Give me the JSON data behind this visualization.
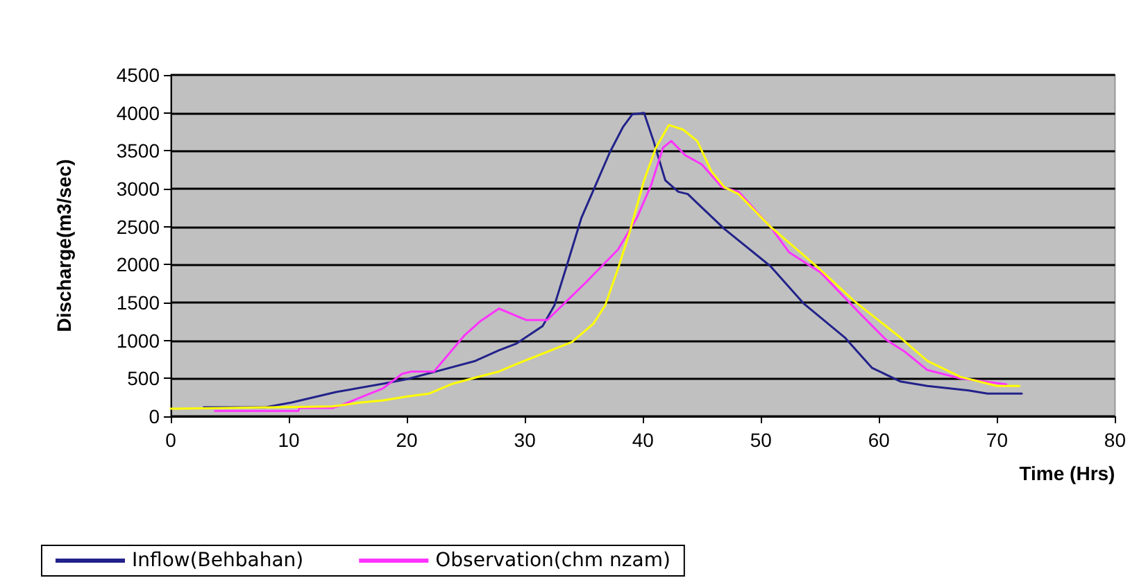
{
  "chart_data": {
    "type": "line",
    "xlabel": "Time (Hrs)",
    "ylabel": "Discharge(m3/sec)",
    "xlim": [
      0,
      80
    ],
    "xticks": [
      0,
      10,
      20,
      30,
      40,
      50,
      60,
      70,
      80
    ],
    "ylim": [
      0,
      4500
    ],
    "yticks": [
      0,
      500,
      1000,
      1500,
      2000,
      2500,
      3000,
      3500,
      4000,
      4500
    ],
    "grid": "y",
    "legend": "bottom",
    "marker": "none",
    "line_style": "solid",
    "series": [
      {
        "name": "Inflow(Behbahan)",
        "color": "#22228a",
        "x": [
          2.8,
          8,
          10.2,
          14,
          18,
          20,
          22.7,
          25.8,
          27.8,
          29.3,
          31.5,
          32.5,
          33.6,
          34.8,
          36,
          37.2,
          38.3,
          39.1,
          40.1,
          40.9,
          41.9,
          43,
          43.8,
          46.9,
          50.8,
          53.6,
          57.1,
          59.4,
          61.8,
          64.1,
          67.6,
          69.2,
          72.1
        ],
        "values": [
          120,
          120,
          180,
          320,
          430,
          490,
          600,
          730,
          870,
          960,
          1190,
          1460,
          2010,
          2620,
          3050,
          3480,
          3810,
          3980,
          4000,
          3630,
          3110,
          2960,
          2930,
          2470,
          1980,
          1490,
          1040,
          640,
          460,
          400,
          340,
          300,
          300
        ]
      },
      {
        "name": "Observation(chm nzam)",
        "color": "#ff33ff",
        "x": [
          3.75,
          10.8,
          10.9,
          13.7,
          14.5,
          18,
          19.6,
          20.4,
          22.3,
          24.9,
          26.2,
          27.8,
          30.1,
          31.9,
          35.2,
          37.9,
          39.5,
          40.7,
          41.7,
          42.4,
          43.6,
          45,
          46.7,
          48.1,
          50.8,
          52.4,
          55.1,
          58.3,
          60.6,
          62.2,
          64.1,
          66.9,
          70.8
        ],
        "values": [
          70,
          70,
          110,
          110,
          150,
          370,
          560,
          590,
          590,
          1070,
          1250,
          1420,
          1270,
          1270,
          1770,
          2200,
          2620,
          3050,
          3540,
          3630,
          3440,
          3320,
          3020,
          2960,
          2500,
          2160,
          1890,
          1370,
          1010,
          850,
          610,
          500,
          420
        ]
      },
      {
        "color": "#ffff00",
        "x": [
          0,
          13.7,
          16,
          18,
          20,
          21.9,
          23.9,
          25.8,
          27.8,
          29.3,
          34,
          35.8,
          36.8,
          37.9,
          38.9,
          40.1,
          41.1,
          42.2,
          43.4,
          44.6,
          45.8,
          46.9,
          48.1,
          50.8,
          54.7,
          57.9,
          61.8,
          64.1,
          66.9,
          70,
          71.9
        ],
        "values": [
          100,
          130,
          180,
          210,
          260,
          300,
          430,
          510,
          590,
          690,
          980,
          1220,
          1460,
          1950,
          2440,
          3110,
          3540,
          3840,
          3780,
          3630,
          3230,
          3020,
          2930,
          2500,
          1980,
          1520,
          1040,
          730,
          520,
          400,
          400
        ]
      }
    ]
  }
}
